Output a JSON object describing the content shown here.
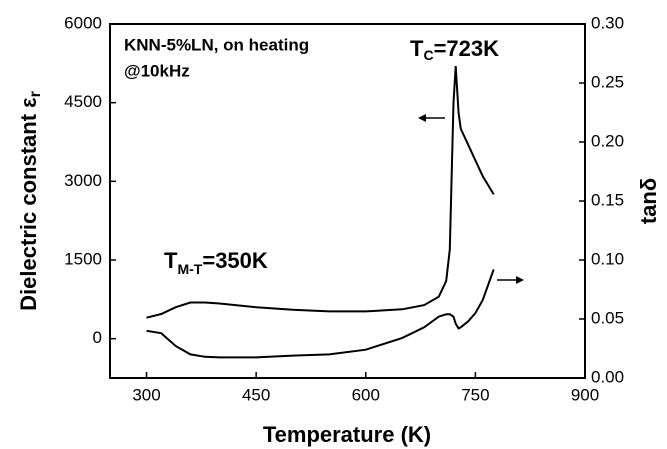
{
  "chart_data": {
    "type": "line",
    "x_label": "Temperature (K)",
    "y_label": [
      "Dielectric constant ε",
      "r"
    ],
    "y2_label": "tanδ",
    "annotations": {
      "sample": "KNN-5%LN, on heating",
      "freq": "@10kHz",
      "tc": [
        "T",
        "C",
        "=723K"
      ],
      "tmt": [
        "T",
        "M-T",
        "=350K"
      ]
    },
    "xlim": [
      250,
      900
    ],
    "xticks": [
      300,
      450,
      600,
      750,
      900
    ],
    "ylim": [
      -750,
      6000
    ],
    "yticks": [
      0,
      1500,
      3000,
      4500,
      6000
    ],
    "y2lim": [
      0,
      0.3
    ],
    "y2ticks": [
      {
        "value": 0,
        "label": "0.00"
      },
      {
        "value": 0.05,
        "label": "0.05"
      },
      {
        "value": 0.1,
        "label": "0.10"
      },
      {
        "value": 0.15,
        "label": "0.15"
      },
      {
        "value": 0.2,
        "label": "0.20"
      },
      {
        "value": 0.25,
        "label": "0.25"
      },
      {
        "value": 0.3,
        "label": "0.30"
      }
    ],
    "series": [
      {
        "color": "#000000",
        "axis": "y",
        "x": [
          300,
          320,
          340,
          360,
          380,
          400,
          450,
          500,
          550,
          600,
          650,
          680,
          700,
          710,
          715,
          720,
          723,
          727,
          730,
          740,
          750,
          760,
          775
        ],
        "values": [
          400,
          470,
          600,
          690,
          690,
          670,
          600,
          550,
          520,
          520,
          560,
          640,
          800,
          1100,
          1700,
          4500,
          5200,
          4300,
          4000,
          3700,
          3400,
          3100,
          2750
        ]
      },
      {
        "color": "#000000",
        "axis": "y2",
        "x": [
          300,
          320,
          340,
          360,
          380,
          400,
          450,
          500,
          550,
          600,
          650,
          680,
          700,
          710,
          715,
          720,
          723,
          727,
          730,
          740,
          750,
          760,
          775
        ],
        "values": [
          0.04,
          0.038,
          0.027,
          0.02,
          0.018,
          0.0175,
          0.0175,
          0.019,
          0.02,
          0.024,
          0.034,
          0.043,
          0.052,
          0.054,
          0.054,
          0.052,
          0.046,
          0.042,
          0.043,
          0.048,
          0.055,
          0.066,
          0.092
        ]
      }
    ]
  }
}
